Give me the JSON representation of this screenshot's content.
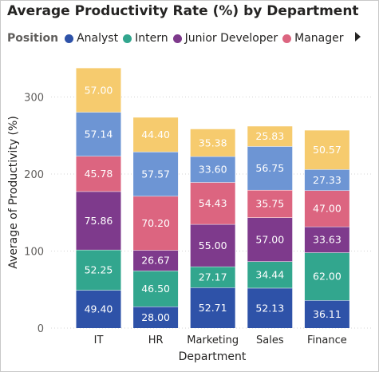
{
  "chart_data": {
    "type": "bar",
    "stacked": true,
    "title": "Average Productivity Rate (%) by Department",
    "xlabel": "Department",
    "ylabel": "Average of Productivity (%)",
    "ylim": [
      0,
      340
    ],
    "yticks": [
      0,
      100,
      200,
      300
    ],
    "grid": true,
    "legend_title": "Position",
    "legend_position": "top-left",
    "categories": [
      "IT",
      "HR",
      "Marketing",
      "Sales",
      "Finance"
    ],
    "series": [
      {
        "name": "Analyst",
        "color": "#2e52a8",
        "values": [
          49.4,
          28.0,
          52.71,
          52.13,
          36.11
        ],
        "labels": [
          "49.40",
          "28.00",
          "52.71",
          "52.13",
          "36.11"
        ]
      },
      {
        "name": "Intern",
        "color": "#32a68e",
        "values": [
          52.25,
          46.5,
          27.17,
          34.44,
          62.0
        ],
        "labels": [
          "52.25",
          "46.50",
          "27.17",
          "34.44",
          "62.00"
        ]
      },
      {
        "name": "Junior Developer",
        "color": "#7e3a8c",
        "values": [
          75.86,
          26.67,
          55.0,
          57.0,
          33.63
        ],
        "labels": [
          "75.86",
          "26.67",
          "55.00",
          "57.00",
          "33.63"
        ]
      },
      {
        "name": "Manager",
        "color": "#dc6580",
        "values": [
          45.78,
          70.2,
          54.43,
          35.75,
          47.0
        ],
        "labels": [
          "45.78",
          "70.20",
          "54.43",
          "35.75",
          "47.00"
        ]
      },
      {
        "name": "",
        "color": "#6d95d4",
        "values": [
          57.14,
          57.57,
          33.6,
          56.75,
          27.33
        ],
        "labels": [
          "57.14",
          "57.57",
          "33.60",
          "56.75",
          "27.33"
        ]
      },
      {
        "name": "",
        "color": "#f6cb6e",
        "values": [
          57.0,
          44.4,
          35.38,
          25.83,
          50.57
        ],
        "labels": [
          "57.00",
          "44.40",
          "35.38",
          "25.83",
          "50.57"
        ]
      }
    ]
  }
}
